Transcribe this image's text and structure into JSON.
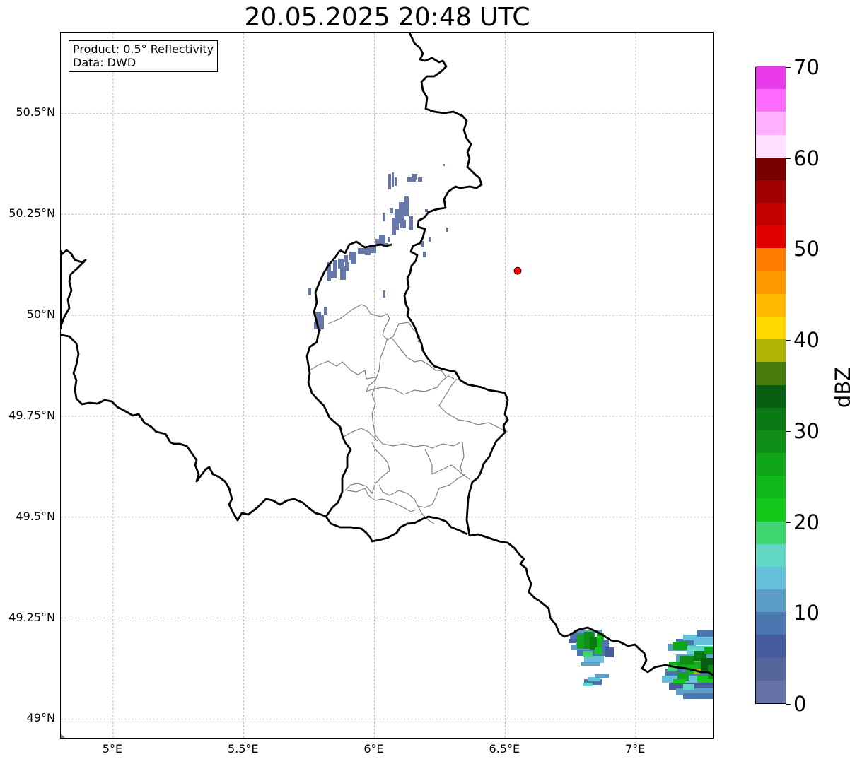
{
  "title": "20.05.2025 20:48 UTC",
  "info_box": {
    "product_line": "Product: 0.5° Reflectivity",
    "data_line": "Data: DWD"
  },
  "map": {
    "lon_range": [
      4.8,
      7.3
    ],
    "lat_range": [
      48.95,
      50.7
    ],
    "lat_ticks": [
      {
        "value": 50.5,
        "label": "50.5°N"
      },
      {
        "value": 50.25,
        "label": "50.25°N"
      },
      {
        "value": 50.0,
        "label": "50°N"
      },
      {
        "value": 49.75,
        "label": "49.75°N"
      },
      {
        "value": 49.5,
        "label": "49.5°N"
      },
      {
        "value": 49.25,
        "label": "49.25°N"
      },
      {
        "value": 49.0,
        "label": "49°N"
      }
    ],
    "lon_ticks": [
      {
        "value": 5.0,
        "label": "5°E"
      },
      {
        "value": 5.5,
        "label": "5.5°E"
      },
      {
        "value": 6.0,
        "label": "6°E"
      },
      {
        "value": 6.5,
        "label": "6.5°E"
      },
      {
        "value": 7.0,
        "label": "7°E"
      }
    ],
    "gridlines": true,
    "radar_site": {
      "lon": 6.548,
      "lat": 50.11,
      "color": "#ff0000"
    },
    "colors": {
      "country_border": "#000000",
      "district_border": "#808080",
      "light_echo": "#6677a8"
    }
  },
  "colorbar": {
    "label": "dBZ",
    "range": [
      0,
      70
    ],
    "step": 2.5,
    "tick_labels": [
      "0",
      "10",
      "20",
      "30",
      "40",
      "50",
      "60",
      "70"
    ],
    "tick_values": [
      0,
      10,
      20,
      30,
      40,
      50,
      60,
      70
    ],
    "colors": [
      "#6472a6",
      "#55669d",
      "#465c9e",
      "#4b77b0",
      "#5c9ec6",
      "#66c0d9",
      "#62d6c4",
      "#3ed46e",
      "#12c91a",
      "#11b81a",
      "#10a51a",
      "#0e8e17",
      "#0b7914",
      "#085e12",
      "#477a0c",
      "#b1b304",
      "#ffd800",
      "#ffb900",
      "#ff9a00",
      "#ff7c00",
      "#e10000",
      "#c40000",
      "#a20000",
      "#7a0000",
      "#ffe0ff",
      "#ffb0ff",
      "#ff6cff",
      "#e83ae8"
    ]
  }
}
